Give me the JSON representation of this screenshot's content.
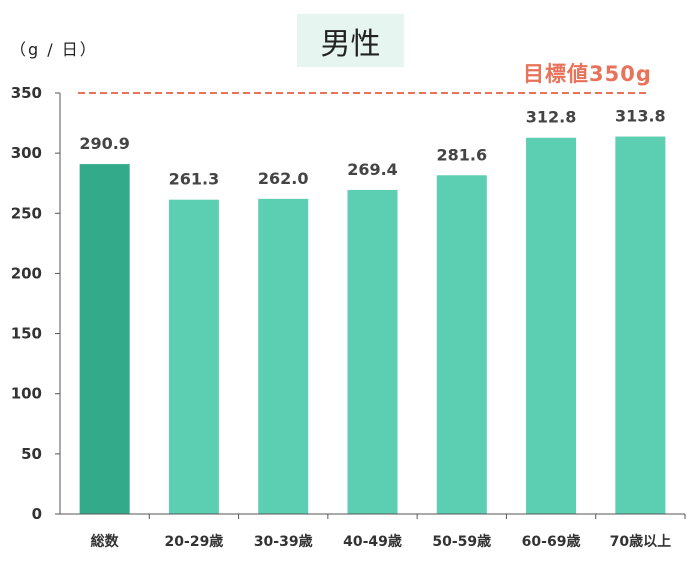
{
  "chart_data": {
    "type": "bar",
    "title": "男性",
    "ylabel": "（g / 日）",
    "xlabel": "",
    "ylim": [
      0,
      350
    ],
    "yticks": [
      0,
      50,
      100,
      150,
      200,
      250,
      300,
      350
    ],
    "categories": [
      "総数",
      "20-29歳",
      "30-39歳",
      "40-49歳",
      "50-59歳",
      "60-69歳",
      "70歳以上"
    ],
    "values": [
      290.9,
      261.3,
      262.0,
      269.4,
      281.6,
      312.8,
      313.8
    ],
    "value_labels": [
      "290.9",
      "261.3",
      "262.0",
      "269.4",
      "281.6",
      "312.8",
      "313.8"
    ],
    "target": {
      "label": "目標値350g",
      "value": 350,
      "color": "#e8735a"
    },
    "colors": {
      "highlight": "#33aa8a",
      "bar": "#5ccfb2"
    },
    "grid": false,
    "legend": "none"
  }
}
